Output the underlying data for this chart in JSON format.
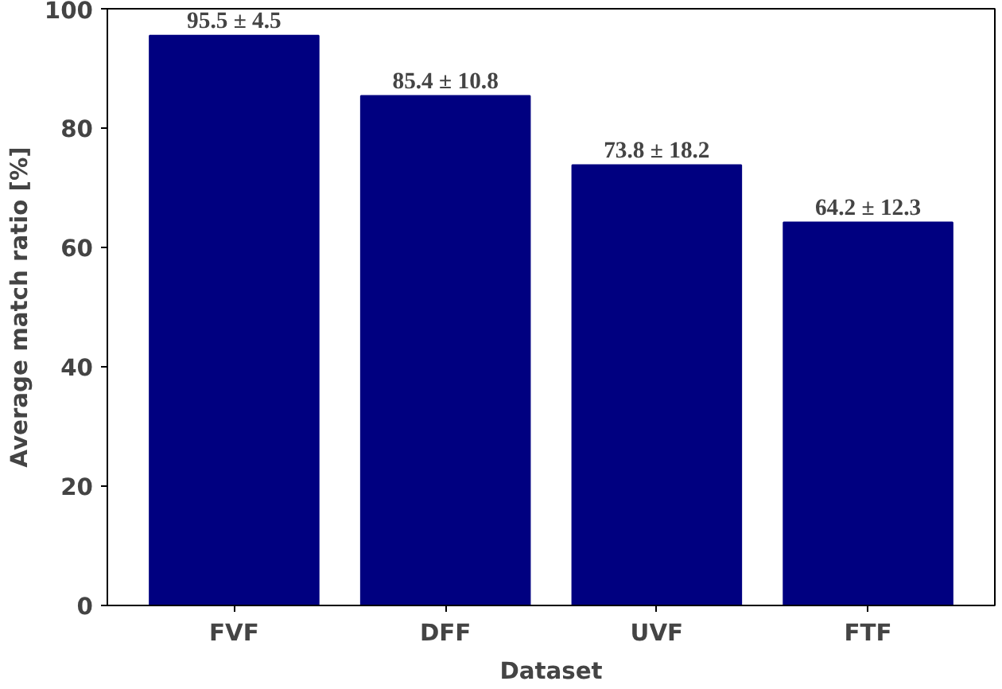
{
  "chart_data": {
    "type": "bar",
    "xlabel": "Dataset",
    "ylabel": "Average match ratio [%]",
    "categories": [
      "FVF",
      "DFF",
      "UVF",
      "FTF"
    ],
    "values": [
      95.5,
      85.4,
      73.8,
      64.2
    ],
    "value_labels": [
      "95.5 ± 4.5",
      "85.4 ± 10.8",
      "73.8 ± 18.2",
      "64.2 ± 12.3"
    ],
    "color": "#000080",
    "ylim": [
      0,
      100
    ],
    "yticks": [
      0,
      20,
      40,
      60,
      80,
      100
    ],
    "grid": false
  }
}
